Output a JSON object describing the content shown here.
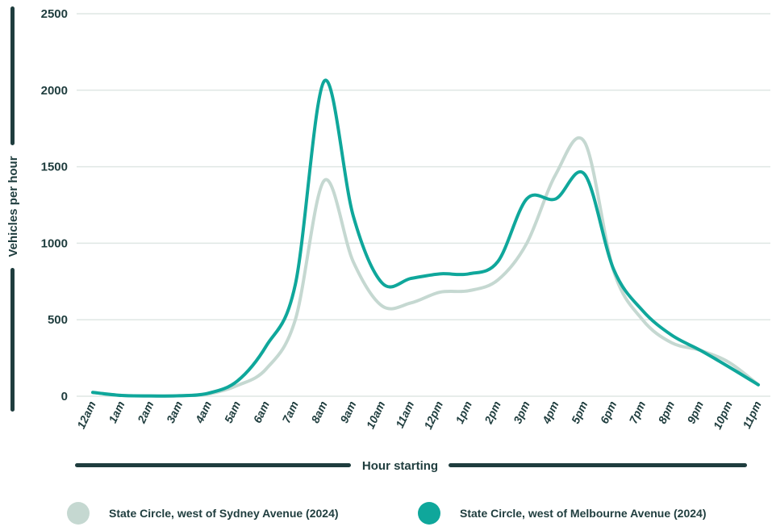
{
  "chart_data": {
    "type": "line",
    "title": "",
    "xlabel": "Hour starting",
    "ylabel": "Vehicles per hour",
    "ylim": [
      0,
      2500
    ],
    "yticks": [
      0,
      500,
      1000,
      1500,
      2000,
      2500
    ],
    "grid": true,
    "legend_position": "bottom",
    "categories": [
      "12am",
      "1am",
      "2am",
      "3am",
      "4am",
      "5am",
      "6am",
      "7am",
      "8am",
      "9am",
      "10am",
      "11am",
      "12pm",
      "1pm",
      "2pm",
      "3pm",
      "4pm",
      "5pm",
      "6pm",
      "7pm",
      "8pm",
      "9pm",
      "10pm",
      "11pm"
    ],
    "series": [
      {
        "name": "State Circle, west of Sydney Avenue (2024)",
        "color": "#c5d8d1",
        "values": [
          25,
          5,
          2,
          3,
          15,
          70,
          180,
          500,
          1410,
          880,
          590,
          610,
          680,
          690,
          760,
          1000,
          1450,
          1660,
          820,
          500,
          350,
          300,
          220,
          75
        ]
      },
      {
        "name": "State Circle, west of Melbourne Avenue (2024)",
        "color": "#0fa79b",
        "values": [
          25,
          5,
          2,
          3,
          20,
          100,
          330,
          730,
          2060,
          1180,
          740,
          770,
          800,
          800,
          880,
          1290,
          1290,
          1450,
          830,
          560,
          400,
          300,
          190,
          75
        ]
      }
    ]
  }
}
